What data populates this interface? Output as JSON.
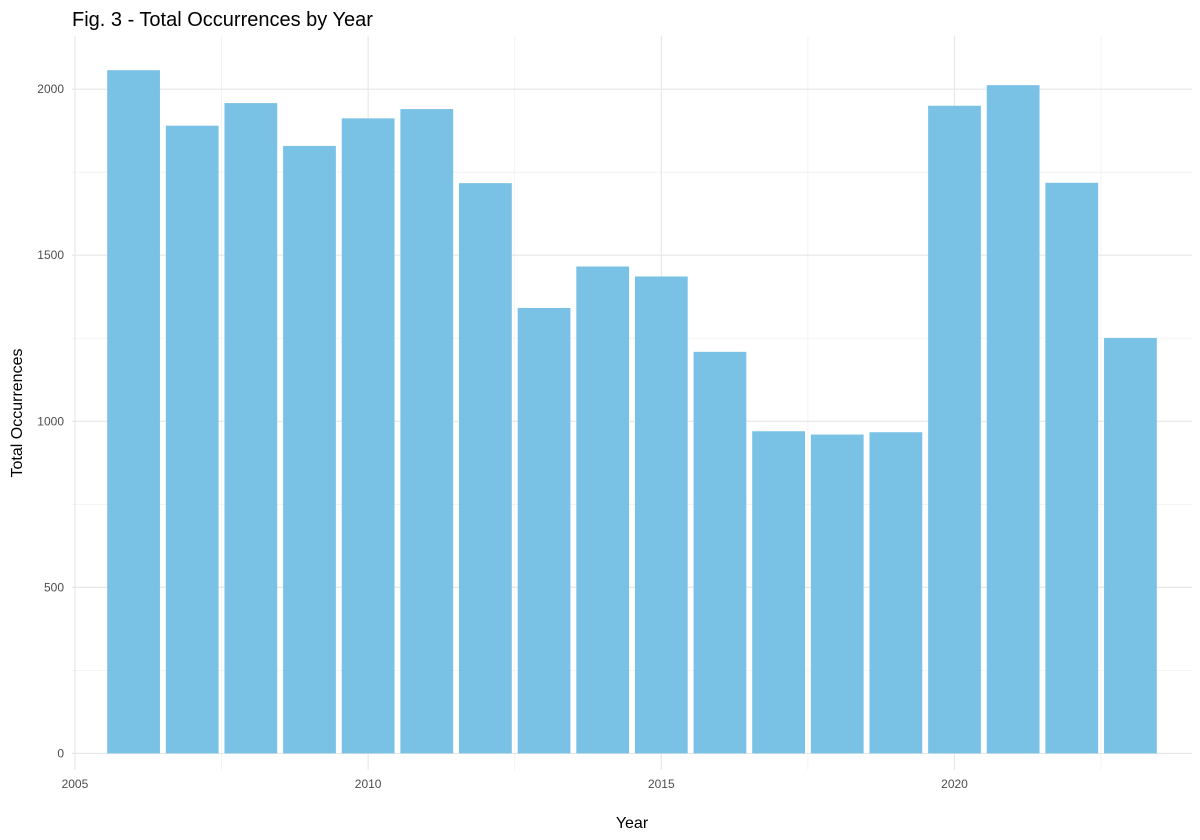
{
  "chart_data": {
    "type": "bar",
    "title": "Fig. 3 - Total Occurrences by Year",
    "xlabel": "Year",
    "ylabel": "Total Occurrences",
    "x": [
      2006,
      2007,
      2008,
      2009,
      2010,
      2011,
      2012,
      2013,
      2014,
      2015,
      2016,
      2017,
      2018,
      2019,
      2020,
      2021,
      2022,
      2023
    ],
    "values": [
      2057,
      1890,
      1958,
      1829,
      1912,
      1940,
      1717,
      1341,
      1466,
      1436,
      1209,
      970,
      960,
      967,
      1950,
      2012,
      1718,
      1251
    ],
    "xlim": [
      2004.95,
      2024.05
    ],
    "ylim": [
      -50,
      2160
    ],
    "x_ticks": [
      2005,
      2010,
      2015,
      2020
    ],
    "x_tick_labels": [
      "2005",
      "2010",
      "2015",
      "2020"
    ],
    "y_ticks": [
      0,
      500,
      1000,
      1500,
      2000
    ],
    "y_tick_labels": [
      "0",
      "500",
      "1000",
      "1500",
      "2000"
    ],
    "bar_color": "#7AC2E5",
    "grid": true,
    "legend": "none"
  }
}
